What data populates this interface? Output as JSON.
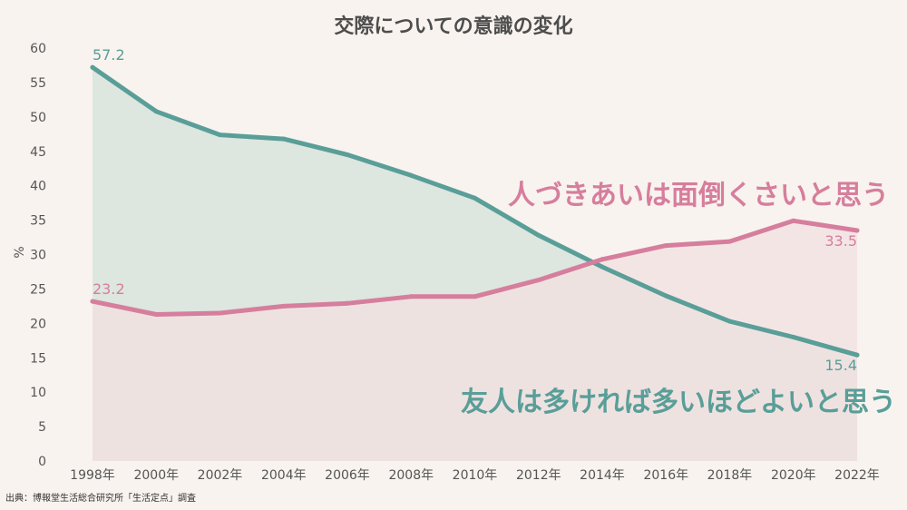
{
  "chart_data": {
    "type": "area",
    "title": "交際についての意識の変化",
    "ylabel": "%",
    "ylim": [
      0,
      60
    ],
    "yticks": [
      0,
      5,
      10,
      15,
      20,
      25,
      30,
      35,
      40,
      45,
      50,
      55,
      60
    ],
    "categories": [
      "1998年",
      "2000年",
      "2002年",
      "2004年",
      "2006年",
      "2008年",
      "2010年",
      "2012年",
      "2014年",
      "2016年",
      "2018年",
      "2020年",
      "2022年"
    ],
    "grid": false,
    "series": [
      {
        "name": "友人は多ければ多いほどよいと思う",
        "color": "#5a9e98",
        "fill": "#dde6df",
        "values": [
          57.2,
          50.8,
          47.4,
          46.8,
          44.5,
          41.5,
          38.2,
          32.8,
          28.2,
          24.0,
          20.3,
          18.0,
          15.4
        ],
        "labeled_points": [
          {
            "index": 0,
            "text": "57.2"
          },
          {
            "index": 12,
            "text": "15.4"
          }
        ]
      },
      {
        "name": "人づきあいは面倒くさいと思う",
        "color": "#d67e9d",
        "fill": "#f3e0e1",
        "values": [
          23.2,
          21.3,
          21.5,
          22.5,
          22.9,
          23.9,
          23.9,
          26.3,
          29.3,
          31.3,
          31.9,
          34.9,
          33.5
        ],
        "labeled_points": [
          {
            "index": 0,
            "text": "23.2"
          },
          {
            "index": 12,
            "text": "33.5"
          }
        ]
      }
    ],
    "source": "出典：博報堂生活総合研究所「生活定点」調査"
  }
}
